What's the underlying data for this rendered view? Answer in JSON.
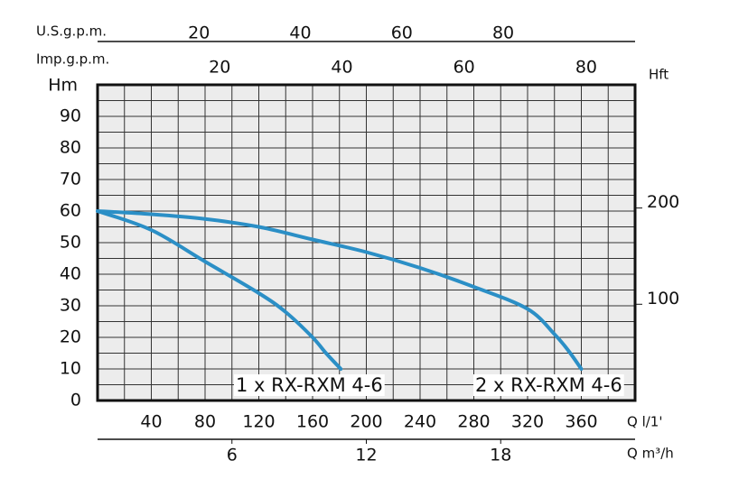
{
  "chart_data": {
    "type": "line",
    "ylabel": "Hm",
    "ylim": [
      0,
      100
    ],
    "yticks": [
      0,
      10,
      20,
      30,
      40,
      50,
      60,
      70,
      80,
      90
    ],
    "xlabel": "Q l/1'",
    "xlim": [
      0,
      400
    ],
    "xticks": [
      40,
      80,
      120,
      160,
      200,
      240,
      280,
      320,
      360
    ],
    "grid": true,
    "grid_x_step": 20,
    "grid_y_step": 5,
    "x2label": "Q m³/h",
    "x2lim": [
      0,
      24
    ],
    "x2ticks": [
      6,
      12,
      18
    ],
    "top_axes": [
      {
        "label": "U.S.g.p.m.",
        "lim": [
          0,
          106
        ],
        "ticks": [
          20,
          40,
          60,
          80
        ]
      },
      {
        "label": "Imp.g.p.m.",
        "lim": [
          0,
          88
        ],
        "ticks": [
          20,
          40,
          60,
          80
        ]
      }
    ],
    "y2label": "Hft",
    "y2lim": [
      0,
      328
    ],
    "y2ticks": [
      100,
      200
    ],
    "series": [
      {
        "name": "1 x RX-RXM 4-6",
        "color": "#2b8fc6",
        "x": [
          0,
          40,
          80,
          120,
          140,
          160,
          170,
          181
        ],
        "values": [
          60,
          54,
          44,
          34,
          28,
          20,
          15,
          10
        ]
      },
      {
        "name": "2 x RX-RXM 4-6",
        "color": "#2b8fc6",
        "x": [
          0,
          40,
          80,
          120,
          160,
          200,
          240,
          280,
          320,
          340,
          350,
          360
        ],
        "values": [
          60,
          59,
          57.5,
          55,
          51,
          47,
          42,
          36,
          29,
          21,
          16,
          10
        ]
      }
    ]
  }
}
